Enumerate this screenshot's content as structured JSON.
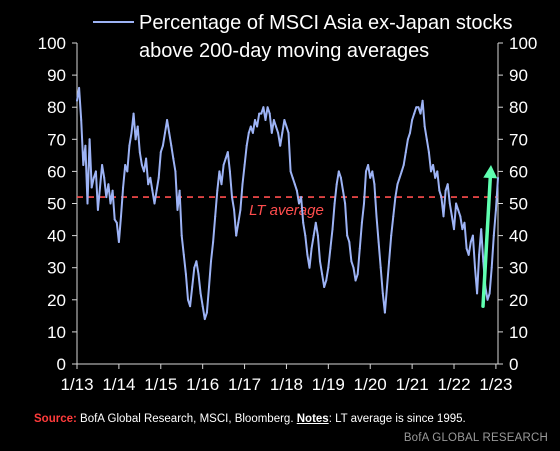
{
  "chart_data": {
    "type": "line",
    "legend": "Percentage of MSCI Asia ex-Japan stocks above 200-day moving averages",
    "legend_lines": [
      "Percentage of MSCI Asia ex-Japan stocks",
      "above 200-day moving averages"
    ],
    "ylim": [
      0,
      100
    ],
    "yticks": [
      "0",
      "10",
      "20",
      "30",
      "40",
      "50",
      "60",
      "70",
      "80",
      "90",
      "100"
    ],
    "xticks": [
      "1/13",
      "1/14",
      "1/15",
      "1/16",
      "1/17",
      "1/18",
      "1/19",
      "1/20",
      "1/21",
      "1/22",
      "1/23"
    ],
    "lt_average": {
      "label": "LT average",
      "value": 52
    },
    "arrow": {
      "from": 18,
      "to": 62
    },
    "series": [
      {
        "name": "Percentage of MSCI Asia ex-Japan stocks above 200-day moving averages",
        "color": "#9db3f5",
        "x": [
          2013.0,
          2013.05,
          2013.1,
          2013.15,
          2013.2,
          2013.25,
          2013.3,
          2013.35,
          2013.4,
          2013.45,
          2013.5,
          2013.55,
          2013.6,
          2013.65,
          2013.7,
          2013.75,
          2013.8,
          2013.85,
          2013.9,
          2013.95,
          2014.0,
          2014.05,
          2014.1,
          2014.15,
          2014.2,
          2014.25,
          2014.3,
          2014.35,
          2014.4,
          2014.45,
          2014.5,
          2014.55,
          2014.6,
          2014.65,
          2014.7,
          2014.75,
          2014.8,
          2014.85,
          2014.9,
          2014.95,
          2015.0,
          2015.05,
          2015.1,
          2015.15,
          2015.2,
          2015.25,
          2015.3,
          2015.35,
          2015.4,
          2015.45,
          2015.5,
          2015.55,
          2015.6,
          2015.65,
          2015.7,
          2015.75,
          2015.8,
          2015.85,
          2015.9,
          2015.95,
          2016.0,
          2016.05,
          2016.1,
          2016.15,
          2016.2,
          2016.25,
          2016.3,
          2016.35,
          2016.4,
          2016.45,
          2016.5,
          2016.55,
          2016.6,
          2016.65,
          2016.7,
          2016.75,
          2016.8,
          2016.85,
          2016.9,
          2016.95,
          2017.0,
          2017.05,
          2017.1,
          2017.15,
          2017.2,
          2017.25,
          2017.3,
          2017.35,
          2017.4,
          2017.45,
          2017.5,
          2017.55,
          2017.6,
          2017.65,
          2017.7,
          2017.75,
          2017.8,
          2017.85,
          2017.9,
          2017.95,
          2018.0,
          2018.05,
          2018.1,
          2018.15,
          2018.2,
          2018.25,
          2018.3,
          2018.35,
          2018.4,
          2018.45,
          2018.5,
          2018.55,
          2018.6,
          2018.65,
          2018.7,
          2018.75,
          2018.8,
          2018.85,
          2018.9,
          2018.95,
          2019.0,
          2019.05,
          2019.1,
          2019.15,
          2019.2,
          2019.25,
          2019.3,
          2019.35,
          2019.4,
          2019.45,
          2019.5,
          2019.55,
          2019.6,
          2019.65,
          2019.7,
          2019.75,
          2019.8,
          2019.85,
          2019.9,
          2019.95,
          2020.0,
          2020.05,
          2020.1,
          2020.15,
          2020.2,
          2020.25,
          2020.3,
          2020.35,
          2020.4,
          2020.45,
          2020.5,
          2020.55,
          2020.6,
          2020.65,
          2020.7,
          2020.75,
          2020.8,
          2020.85,
          2020.9,
          2020.95,
          2021.0,
          2021.05,
          2021.1,
          2021.15,
          2021.2,
          2021.25,
          2021.3,
          2021.35,
          2021.4,
          2021.45,
          2021.5,
          2021.55,
          2021.6,
          2021.65,
          2021.7,
          2021.75,
          2021.8,
          2021.85,
          2021.9,
          2021.95,
          2022.0,
          2022.05,
          2022.1,
          2022.15,
          2022.2,
          2022.25,
          2022.3,
          2022.35,
          2022.4,
          2022.45,
          2022.5,
          2022.55,
          2022.6,
          2022.65,
          2022.7,
          2022.75,
          2022.8,
          2022.85,
          2022.9,
          2022.95,
          2023.0,
          2023.05
        ],
        "values": [
          82,
          86,
          76,
          62,
          68,
          50,
          70,
          55,
          58,
          60,
          48,
          55,
          62,
          58,
          52,
          56,
          50,
          54,
          45,
          44,
          38,
          46,
          55,
          62,
          60,
          68,
          72,
          78,
          70,
          74,
          66,
          62,
          60,
          64,
          56,
          58,
          54,
          50,
          54,
          58,
          66,
          68,
          72,
          76,
          72,
          68,
          64,
          60,
          48,
          54,
          40,
          34,
          28,
          20,
          18,
          24,
          30,
          32,
          28,
          22,
          18,
          14,
          16,
          24,
          32,
          38,
          46,
          54,
          60,
          56,
          62,
          64,
          66,
          60,
          52,
          48,
          40,
          44,
          48,
          56,
          62,
          68,
          72,
          74,
          72,
          76,
          74,
          78,
          78,
          80,
          76,
          80,
          78,
          72,
          76,
          74,
          72,
          68,
          72,
          76,
          74,
          72,
          60,
          58,
          56,
          54,
          50,
          52,
          44,
          40,
          34,
          30,
          36,
          40,
          44,
          40,
          32,
          28,
          24,
          26,
          30,
          36,
          42,
          50,
          56,
          60,
          58,
          54,
          50,
          40,
          38,
          32,
          30,
          26,
          28,
          36,
          44,
          50,
          60,
          62,
          58,
          60,
          56,
          46,
          38,
          30,
          22,
          16,
          24,
          32,
          40,
          46,
          52,
          56,
          58,
          60,
          62,
          66,
          70,
          72,
          76,
          78,
          80,
          80,
          78,
          82,
          74,
          70,
          66,
          60,
          62,
          58,
          60,
          54,
          52,
          46,
          54,
          56,
          50,
          46,
          42,
          50,
          48,
          46,
          42,
          44,
          36,
          34,
          38,
          40,
          30,
          22,
          34,
          42,
          32,
          24,
          20,
          22,
          30,
          40,
          48,
          58
        ]
      }
    ]
  },
  "footer": {
    "source_label": "Source:",
    "source_text": "BofA Global Research, MSCI, Bloomberg.",
    "notes_label": "Notes",
    "notes_text": ": LT average is since 1995.",
    "brand": "BofA GLOBAL RESEARCH"
  },
  "colors": {
    "background": "#000000",
    "series": "#9db3f5",
    "lt_average": "#ff4d4d",
    "arrow": "#5fffb0",
    "axis": "#d8d8d8",
    "source_label": "#ff3b3b"
  }
}
